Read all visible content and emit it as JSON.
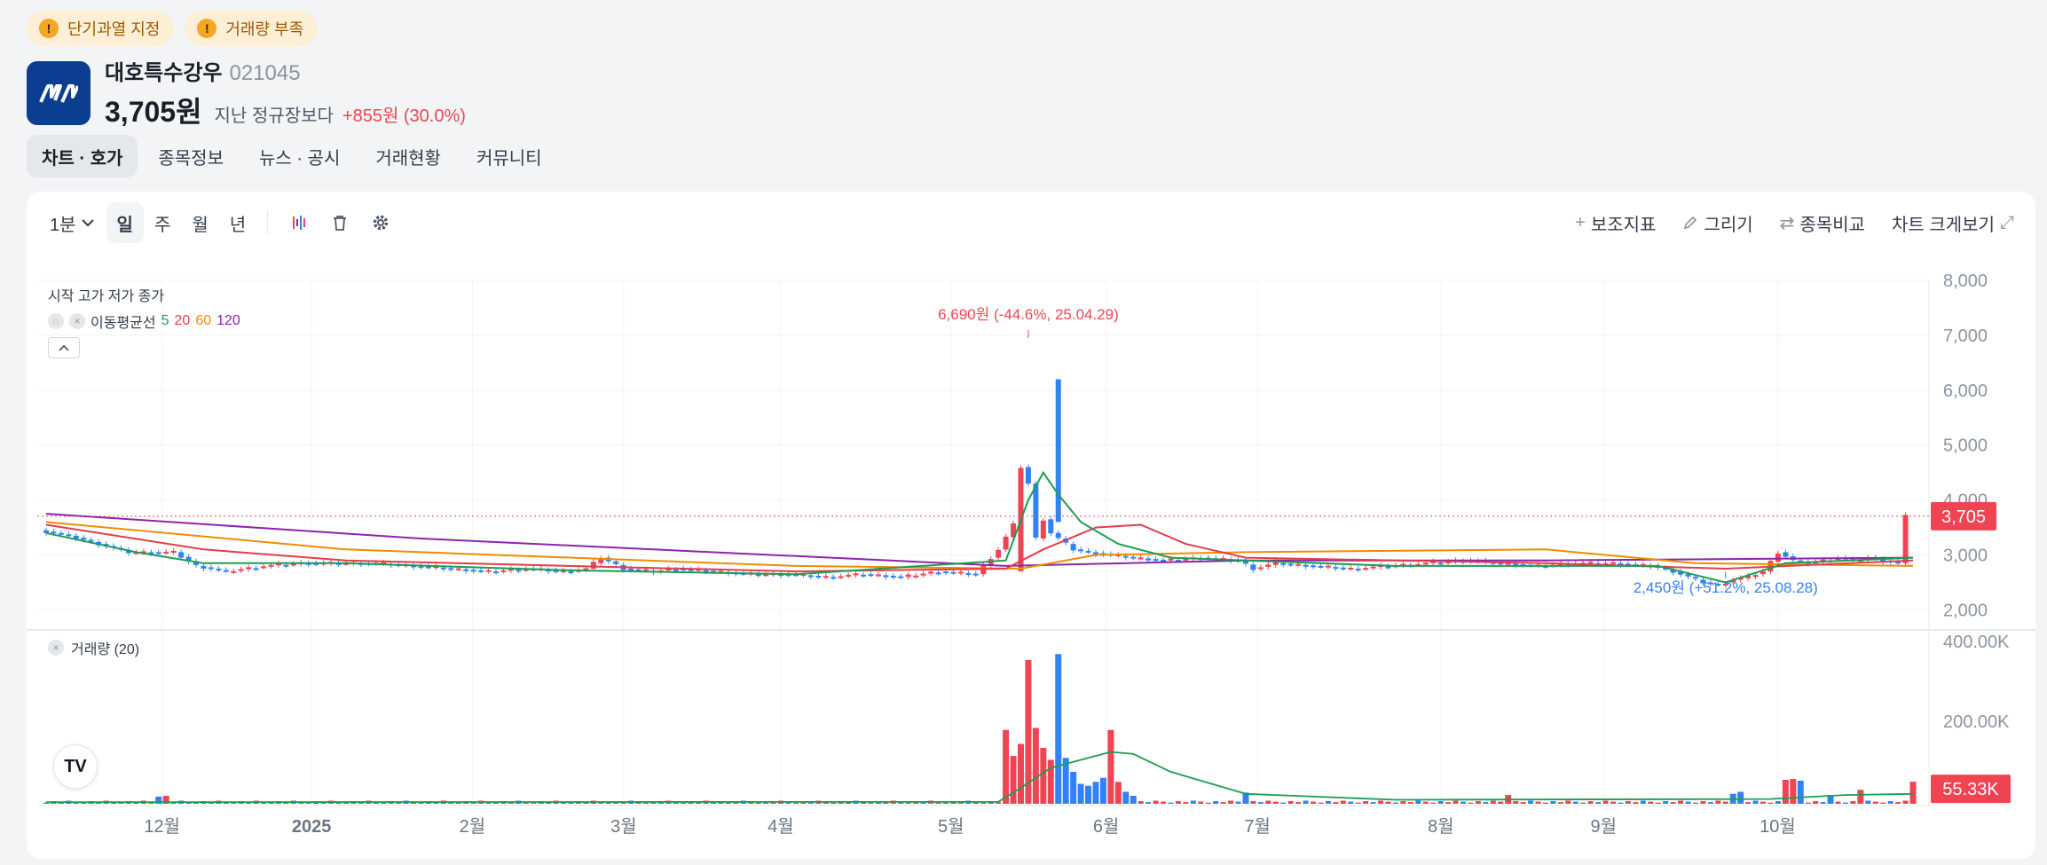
{
  "badges": [
    {
      "label": "단기과열 지정",
      "icon": "warning-icon"
    },
    {
      "label": "거래량 부족",
      "icon": "warning-icon"
    }
  ],
  "stock": {
    "name": "대호특수강우",
    "code": "021045",
    "price": "3,705원",
    "compare_label": "지난 정규장보다",
    "change": "+855원 (30.0%)",
    "logo_color": "#0b3d91"
  },
  "tabs": [
    "차트 · 호가",
    "종목정보",
    "뉴스 · 공시",
    "거래현황",
    "커뮤니티"
  ],
  "toolbar": {
    "interval": "1분",
    "periods": [
      "일",
      "주",
      "월",
      "년"
    ],
    "active_period": "일",
    "right": {
      "indicators": "보조지표",
      "draw": "그리기",
      "compare": "종목비교",
      "fullscreen": "차트 크게보기"
    }
  },
  "chart_overlay": {
    "ohlc_label": "시작 고가 저가 종가",
    "ma_label": "이동평균선",
    "ma_periods": [
      {
        "label": "5",
        "color": "#1a9e52"
      },
      {
        "label": "20",
        "color": "#e23d4b"
      },
      {
        "label": "60",
        "color": "#f08c00"
      },
      {
        "label": "120",
        "color": "#8e24aa"
      }
    ],
    "volume_label": "거래량 (20)",
    "tv_logo": "TV"
  },
  "chart_data": {
    "type": "candlestick",
    "price_ticks": [
      "8,000",
      "7,000",
      "6,000",
      "5,000",
      "4,000",
      "3,000",
      "2,000"
    ],
    "volume_ticks": [
      "400.00K",
      "200.00K"
    ],
    "x_ticks": [
      "12월",
      "2025",
      "2월",
      "3월",
      "4월",
      "5월",
      "6월",
      "7월",
      "8월",
      "9월",
      "10월"
    ],
    "ylim": [
      1700,
      8000
    ],
    "current_price": 3705,
    "current_price_label": "3,705",
    "current_volume_label": "55.33K",
    "high_annotation": "6,690원 (-44.6%, 25.04.29)",
    "low_annotation": "2,450원 (+51.2%, 25.08.28)",
    "up_color": "#f04452",
    "down_color": "#3182f6",
    "close_series": [
      {
        "x": 0,
        "y": 3450
      },
      {
        "x": 4,
        "y": 3350
      },
      {
        "x": 8,
        "y": 3200
      },
      {
        "x": 12,
        "y": 3050
      },
      {
        "x": 15,
        "y": 3050
      },
      {
        "x": 18,
        "y": 3050
      },
      {
        "x": 21,
        "y": 2800
      },
      {
        "x": 25,
        "y": 2700
      },
      {
        "x": 30,
        "y": 2800
      },
      {
        "x": 35,
        "y": 2850
      },
      {
        "x": 40,
        "y": 2850
      },
      {
        "x": 45,
        "y": 2850
      },
      {
        "x": 50,
        "y": 2800
      },
      {
        "x": 55,
        "y": 2750
      },
      {
        "x": 60,
        "y": 2700
      },
      {
        "x": 65,
        "y": 2750
      },
      {
        "x": 70,
        "y": 2700
      },
      {
        "x": 73,
        "y": 2750
      },
      {
        "x": 75,
        "y": 2950
      },
      {
        "x": 78,
        "y": 2750
      },
      {
        "x": 82,
        "y": 2700
      },
      {
        "x": 85,
        "y": 2750
      },
      {
        "x": 90,
        "y": 2700
      },
      {
        "x": 95,
        "y": 2650
      },
      {
        "x": 100,
        "y": 2650
      },
      {
        "x": 105,
        "y": 2600
      },
      {
        "x": 110,
        "y": 2650
      },
      {
        "x": 115,
        "y": 2600
      },
      {
        "x": 120,
        "y": 2700
      },
      {
        "x": 125,
        "y": 2650
      },
      {
        "x": 128,
        "y": 3100
      },
      {
        "x": 130,
        "y": 3550
      },
      {
        "x": 131,
        "y": 4600
      },
      {
        "x": 132,
        "y": 4300
      },
      {
        "x": 133,
        "y": 3300
      },
      {
        "x": 134,
        "y": 3650
      },
      {
        "x": 135,
        "y": 3400
      },
      {
        "x": 136,
        "y": 3300
      },
      {
        "x": 138,
        "y": 3100
      },
      {
        "x": 140,
        "y": 3050
      },
      {
        "x": 143,
        "y": 3000
      },
      {
        "x": 146,
        "y": 2950
      },
      {
        "x": 150,
        "y": 2900
      },
      {
        "x": 155,
        "y": 2950
      },
      {
        "x": 160,
        "y": 2900
      },
      {
        "x": 162,
        "y": 2750
      },
      {
        "x": 165,
        "y": 2850
      },
      {
        "x": 170,
        "y": 2800
      },
      {
        "x": 175,
        "y": 2750
      },
      {
        "x": 180,
        "y": 2800
      },
      {
        "x": 185,
        "y": 2850
      },
      {
        "x": 190,
        "y": 2900
      },
      {
        "x": 195,
        "y": 2850
      },
      {
        "x": 200,
        "y": 2800
      },
      {
        "x": 205,
        "y": 2850
      },
      {
        "x": 210,
        "y": 2850
      },
      {
        "x": 215,
        "y": 2800
      },
      {
        "x": 218,
        "y": 2700
      },
      {
        "x": 220,
        "y": 2600
      },
      {
        "x": 222,
        "y": 2500
      },
      {
        "x": 224,
        "y": 2450
      },
      {
        "x": 226,
        "y": 2550
      },
      {
        "x": 228,
        "y": 2600
      },
      {
        "x": 230,
        "y": 2700
      },
      {
        "x": 232,
        "y": 3050
      },
      {
        "x": 234,
        "y": 2900
      },
      {
        "x": 236,
        "y": 2850
      },
      {
        "x": 238,
        "y": 2900
      },
      {
        "x": 240,
        "y": 2950
      },
      {
        "x": 242,
        "y": 2900
      },
      {
        "x": 244,
        "y": 2950
      },
      {
        "x": 246,
        "y": 2900
      },
      {
        "x": 248,
        "y": 2850
      },
      {
        "x": 249,
        "y": 3705
      }
    ],
    "ma5": [
      {
        "x": 0,
        "y": 3400
      },
      {
        "x": 12,
        "y": 3050
      },
      {
        "x": 21,
        "y": 2850
      },
      {
        "x": 40,
        "y": 2850
      },
      {
        "x": 70,
        "y": 2720
      },
      {
        "x": 100,
        "y": 2650
      },
      {
        "x": 128,
        "y": 2900
      },
      {
        "x": 131,
        "y": 4000
      },
      {
        "x": 133,
        "y": 4500
      },
      {
        "x": 135,
        "y": 4100
      },
      {
        "x": 138,
        "y": 3600
      },
      {
        "x": 143,
        "y": 3200
      },
      {
        "x": 150,
        "y": 2950
      },
      {
        "x": 160,
        "y": 2900
      },
      {
        "x": 180,
        "y": 2800
      },
      {
        "x": 215,
        "y": 2800
      },
      {
        "x": 224,
        "y": 2500
      },
      {
        "x": 232,
        "y": 2850
      },
      {
        "x": 249,
        "y": 2950
      }
    ],
    "ma20": [
      {
        "x": 0,
        "y": 3550
      },
      {
        "x": 21,
        "y": 3100
      },
      {
        "x": 40,
        "y": 2900
      },
      {
        "x": 100,
        "y": 2700
      },
      {
        "x": 128,
        "y": 2750
      },
      {
        "x": 133,
        "y": 3100
      },
      {
        "x": 140,
        "y": 3500
      },
      {
        "x": 146,
        "y": 3550
      },
      {
        "x": 152,
        "y": 3200
      },
      {
        "x": 160,
        "y": 2950
      },
      {
        "x": 200,
        "y": 2850
      },
      {
        "x": 224,
        "y": 2750
      },
      {
        "x": 249,
        "y": 2900
      }
    ],
    "ma60": [
      {
        "x": 0,
        "y": 3600
      },
      {
        "x": 40,
        "y": 3100
      },
      {
        "x": 100,
        "y": 2800
      },
      {
        "x": 130,
        "y": 2750
      },
      {
        "x": 140,
        "y": 3000
      },
      {
        "x": 160,
        "y": 3050
      },
      {
        "x": 200,
        "y": 3100
      },
      {
        "x": 220,
        "y": 2850
      },
      {
        "x": 249,
        "y": 2800
      }
    ],
    "ma120": [
      {
        "x": 0,
        "y": 3750
      },
      {
        "x": 50,
        "y": 3300
      },
      {
        "x": 128,
        "y": 2800
      },
      {
        "x": 160,
        "y": 2900
      },
      {
        "x": 200,
        "y": 2900
      },
      {
        "x": 249,
        "y": 2950
      }
    ],
    "volume_spikes": [
      {
        "x": 15,
        "v": 18000,
        "up": false
      },
      {
        "x": 16,
        "v": 20000,
        "up": true
      },
      {
        "x": 128,
        "v": 185000,
        "up": true
      },
      {
        "x": 129,
        "v": 120000,
        "up": true
      },
      {
        "x": 130,
        "v": 150000,
        "up": true
      },
      {
        "x": 131,
        "v": 360000,
        "up": true
      },
      {
        "x": 132,
        "v": 190000,
        "up": true
      },
      {
        "x": 133,
        "v": 140000,
        "up": true
      },
      {
        "x": 134,
        "v": 110000,
        "up": true
      },
      {
        "x": 135,
        "v": 375000,
        "up": false
      },
      {
        "x": 136,
        "v": 115000,
        "up": false
      },
      {
        "x": 137,
        "v": 80000,
        "up": false
      },
      {
        "x": 138,
        "v": 50000,
        "up": false
      },
      {
        "x": 139,
        "v": 45000,
        "up": false
      },
      {
        "x": 140,
        "v": 55000,
        "up": false
      },
      {
        "x": 141,
        "v": 65000,
        "up": false
      },
      {
        "x": 142,
        "v": 185000,
        "up": true
      },
      {
        "x": 143,
        "v": 55000,
        "up": true
      },
      {
        "x": 144,
        "v": 30000,
        "up": false
      },
      {
        "x": 145,
        "v": 20000,
        "up": false
      },
      {
        "x": 160,
        "v": 28000,
        "up": false
      },
      {
        "x": 195,
        "v": 22000,
        "up": true
      },
      {
        "x": 225,
        "v": 25000,
        "up": false
      },
      {
        "x": 226,
        "v": 30000,
        "up": false
      },
      {
        "x": 232,
        "v": 60000,
        "up": true
      },
      {
        "x": 233,
        "v": 62000,
        "up": true
      },
      {
        "x": 234,
        "v": 58000,
        "up": false
      },
      {
        "x": 238,
        "v": 22000,
        "up": false
      },
      {
        "x": 242,
        "v": 35000,
        "up": true
      },
      {
        "x": 249,
        "v": 55330,
        "up": true
      }
    ],
    "volume_ma": [
      {
        "x": 0,
        "v": 4000
      },
      {
        "x": 127,
        "v": 5000
      },
      {
        "x": 130,
        "v": 40000
      },
      {
        "x": 134,
        "v": 90000
      },
      {
        "x": 138,
        "v": 110000
      },
      {
        "x": 142,
        "v": 130000
      },
      {
        "x": 145,
        "v": 125000
      },
      {
        "x": 150,
        "v": 80000
      },
      {
        "x": 160,
        "v": 25000
      },
      {
        "x": 180,
        "v": 10000
      },
      {
        "x": 230,
        "v": 12000
      },
      {
        "x": 240,
        "v": 22000
      },
      {
        "x": 249,
        "v": 25000
      }
    ],
    "vlim": [
      0,
      400000
    ]
  }
}
